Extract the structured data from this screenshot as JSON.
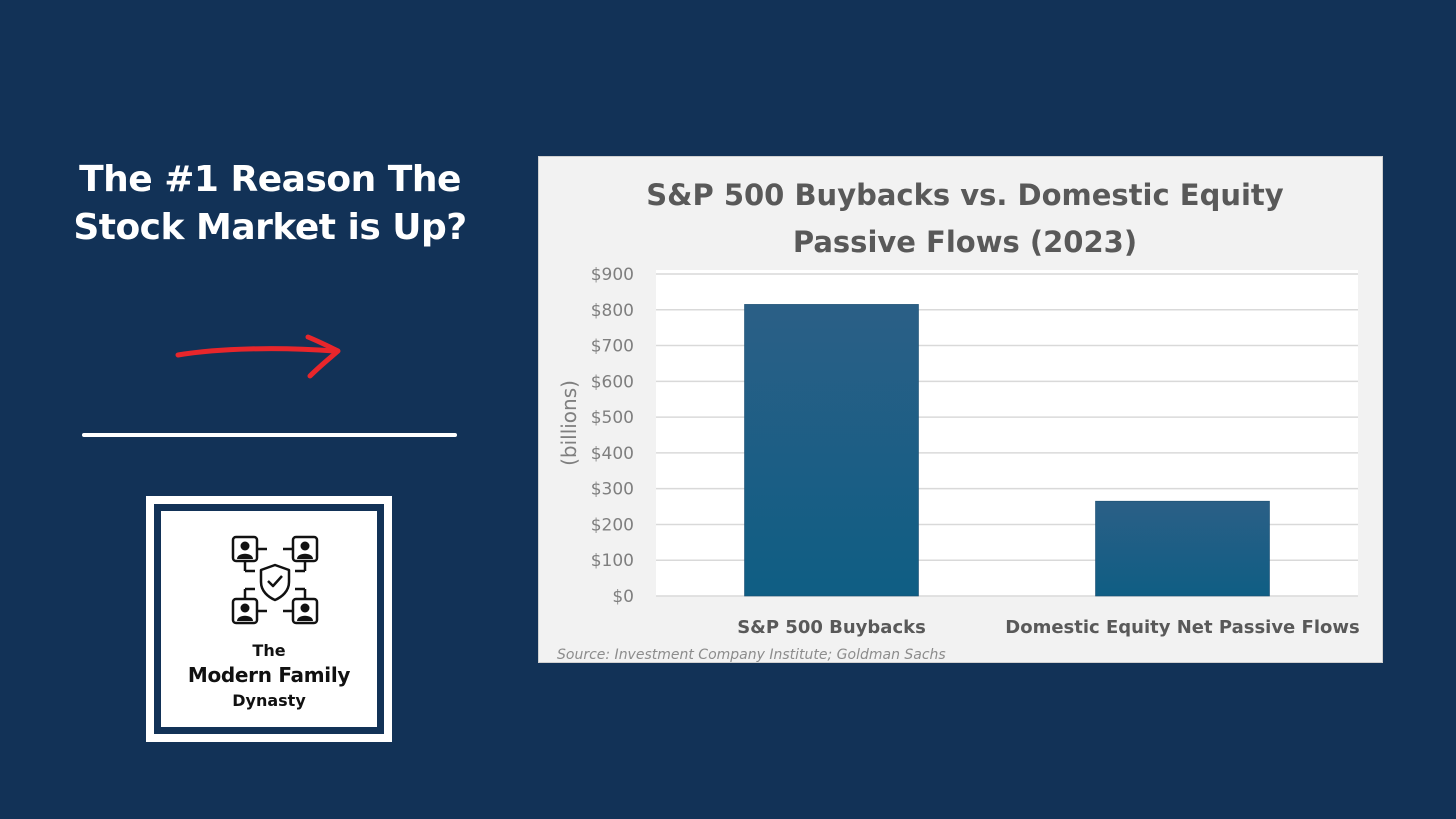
{
  "headline": {
    "line1": "The #1 Reason The",
    "line2": "Stock Market is Up?"
  },
  "arrow_color": "#e8262b",
  "logo": {
    "the": "The",
    "name": "Modern Family",
    "dynasty": "Dynasty",
    "icon": "family-network-shield-icon"
  },
  "chart_data": {
    "type": "bar",
    "title_line1": "S&P 500 Buybacks vs. Domestic Equity",
    "title_line2": "Passive Flows (2023)",
    "categories": [
      "S&P 500 Buybacks",
      "Domestic Equity Net Passive Flows"
    ],
    "values": [
      815,
      265
    ],
    "ylabel": "(billions)",
    "ylim": [
      0,
      900
    ],
    "yticks": [
      {
        "value": 0,
        "label": "$0"
      },
      {
        "value": 100,
        "label": "$100"
      },
      {
        "value": 200,
        "label": "$200"
      },
      {
        "value": 300,
        "label": "$300"
      },
      {
        "value": 400,
        "label": "$400"
      },
      {
        "value": 500,
        "label": "$500"
      },
      {
        "value": 600,
        "label": "$600"
      },
      {
        "value": 700,
        "label": "$700"
      },
      {
        "value": 800,
        "label": "$800"
      },
      {
        "value": 900,
        "label": "$900"
      }
    ],
    "grid": true,
    "bar_color": "#1d6389",
    "source": "Source: Investment Company Institute; Goldman Sachs"
  }
}
